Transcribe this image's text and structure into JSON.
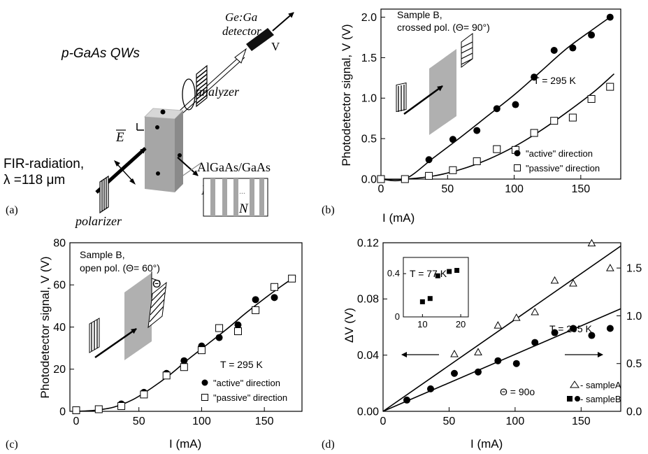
{
  "panel_a": {
    "label": "(a)",
    "title": "p-GaAs QWs",
    "detector_line1": "Ge:Ga",
    "detector_line2": "detector",
    "v_label": "V",
    "analyzer": "analyzer",
    "field_label": "E",
    "current_label": "I",
    "current_sub": "x",
    "fir_line1": "FIR-radiation,",
    "fir_line2": "λ =118 μm",
    "polarizer": "polarizer",
    "structure_label": "AlGaAs/GaAs",
    "dots": "...",
    "n_label": "N"
  },
  "chart_data": [
    {
      "panel": "(b)",
      "type": "scatter",
      "annotation_line1": "Sample B,",
      "annotation_line2": "crossed pol. (Θ= 90°)",
      "temp_label": "T = 295 K",
      "xlabel": "I (mA)",
      "ylabel": "Photodetector signal, V (V)",
      "xlim": [
        0,
        180
      ],
      "ylim": [
        0,
        2.1
      ],
      "xticks": [
        "0",
        "50",
        "100",
        "150"
      ],
      "xtick_values": [
        0,
        50,
        100,
        150
      ],
      "yticks": [
        "0.0",
        "0.5",
        "1.0",
        "1.5",
        "2.0"
      ],
      "ytick_values": [
        0,
        0.5,
        1.0,
        1.5,
        2.0
      ],
      "series": [
        {
          "name": "\"active\" direction",
          "marker": "filled-circle",
          "x": [
            0,
            18,
            36,
            54,
            72,
            87,
            101,
            115,
            130,
            144,
            158,
            172
          ],
          "y": [
            0.0,
            0.0,
            0.24,
            0.49,
            0.6,
            0.87,
            0.92,
            1.26,
            1.59,
            1.62,
            1.78,
            2.0
          ],
          "fit": [
            [
              0,
              0
            ],
            [
              18,
              0
            ],
            [
              40,
              0.27
            ],
            [
              60,
              0.52
            ],
            [
              80,
              0.78
            ],
            [
              100,
              1.04
            ],
            [
              120,
              1.33
            ],
            [
              140,
              1.62
            ],
            [
              160,
              1.86
            ],
            [
              172,
              2.0
            ]
          ]
        },
        {
          "name": "\"passive\" direction",
          "marker": "open-square",
          "x": [
            0,
            18,
            36,
            54,
            72,
            87,
            101,
            115,
            130,
            144,
            158,
            172
          ],
          "y": [
            0.0,
            0.0,
            0.04,
            0.11,
            0.22,
            0.37,
            0.36,
            0.57,
            0.72,
            0.76,
            0.99,
            1.14
          ],
          "fit": [
            [
              0,
              0
            ],
            [
              18,
              0
            ],
            [
              40,
              0.04
            ],
            [
              60,
              0.12
            ],
            [
              80,
              0.24
            ],
            [
              100,
              0.4
            ],
            [
              120,
              0.6
            ],
            [
              140,
              0.83
            ],
            [
              160,
              1.08
            ],
            [
              175,
              1.3
            ]
          ]
        }
      ]
    },
    {
      "panel": "(c)",
      "type": "scatter",
      "annotation_line1": "Sample B,",
      "annotation_line2": "open pol. (Θ= 60°)",
      "theta_label": "Θ",
      "temp_label": "T = 295 K",
      "xlabel": "I (mA)",
      "ylabel": "Photodetector signal, V (V)",
      "xlim": [
        -5,
        180
      ],
      "ylim": [
        0,
        80
      ],
      "xticks": [
        "0",
        "50",
        "100",
        "150"
      ],
      "xtick_values": [
        0,
        50,
        100,
        150
      ],
      "yticks": [
        "0",
        "20",
        "40",
        "60",
        "80"
      ],
      "ytick_values": [
        0,
        20,
        40,
        60,
        80
      ],
      "series": [
        {
          "name": "\"active\" direction",
          "marker": "filled-circle",
          "x": [
            0,
            18,
            36,
            54,
            72,
            86,
            100,
            114,
            129,
            143,
            158,
            172
          ],
          "y": [
            0.5,
            1,
            3.5,
            9,
            18,
            24,
            31,
            35,
            41,
            53,
            54,
            63
          ],
          "fit": [
            [
              0,
              0
            ],
            [
              15,
              0.5
            ],
            [
              30,
              2
            ],
            [
              45,
              5.5
            ],
            [
              60,
              11
            ],
            [
              75,
              17.5
            ],
            [
              90,
              25
            ],
            [
              105,
              32
            ],
            [
              120,
              39
            ],
            [
              135,
              46.5
            ],
            [
              150,
              53.5
            ],
            [
              165,
              60
            ],
            [
              175,
              64
            ]
          ]
        },
        {
          "name": "\"passive\" direction",
          "marker": "open-square",
          "x": [
            0,
            18,
            36,
            54,
            72,
            86,
            100,
            114,
            129,
            143,
            158,
            172
          ],
          "y": [
            0.5,
            1,
            2.5,
            8,
            17,
            21,
            29,
            39.5,
            38,
            48,
            59,
            63
          ]
        }
      ]
    },
    {
      "panel": "(d)",
      "type": "scatter",
      "temp_label": "T = 295 K",
      "theta_label": "Θ = 90o",
      "xlabel": "I (mA)",
      "ylabel": "ΔV (V)",
      "xlim": [
        0,
        180
      ],
      "ylim": [
        0,
        0.12
      ],
      "y2lim": [
        0,
        1.7647
      ],
      "xticks": [
        "0",
        "50",
        "100",
        "150"
      ],
      "xtick_values": [
        0,
        50,
        100,
        150
      ],
      "yticks": [
        "0.00",
        "0.04",
        "0.08",
        "0.12"
      ],
      "ytick_values": [
        0,
        0.04,
        0.08,
        0.12
      ],
      "y2ticks": [
        "0.0",
        "0.5",
        "1.0",
        "1.5"
      ],
      "y2tick_values": [
        0,
        0.5,
        1.0,
        1.5
      ],
      "legend": [
        "- sampleA",
        "- sampleB"
      ],
      "series": [
        {
          "name": "sampleA",
          "marker": "open-triangle",
          "axis": "right",
          "x": [
            54,
            72,
            87,
            101,
            115,
            130,
            144,
            158,
            172
          ],
          "y": [
            0.6,
            0.62,
            0.9,
            0.98,
            1.04,
            1.37,
            1.34,
            1.76,
            1.5
          ],
          "fit": [
            [
              0,
              0
            ],
            [
              180,
              1.73
            ]
          ]
        },
        {
          "name": "sampleB",
          "marker": "filled-circle",
          "axis": "left",
          "x": [
            18,
            36,
            54,
            72,
            87,
            101,
            115,
            130,
            144,
            158,
            172
          ],
          "y": [
            0.008,
            0.016,
            0.027,
            0.028,
            0.036,
            0.034,
            0.049,
            0.056,
            0.059,
            0.054,
            0.059
          ],
          "fit": [
            [
              0,
              0
            ],
            [
              180,
              0.073
            ]
          ]
        }
      ],
      "inset": {
        "temp_label": "T = 77 K",
        "xlim": [
          5,
          22
        ],
        "ylim": [
          0,
          0.55
        ],
        "xticks": [
          "10",
          "20"
        ],
        "xtick_values": [
          10,
          20
        ],
        "yticks": [
          "0",
          "0.4"
        ],
        "ytick_values": [
          0,
          0.4
        ],
        "series": [
          {
            "name": "sampleB",
            "marker": "filled-square",
            "x": [
              10,
              12,
              14,
              17,
              19
            ],
            "y": [
              0.14,
              0.17,
              0.38,
              0.42,
              0.43
            ]
          }
        ]
      }
    }
  ]
}
